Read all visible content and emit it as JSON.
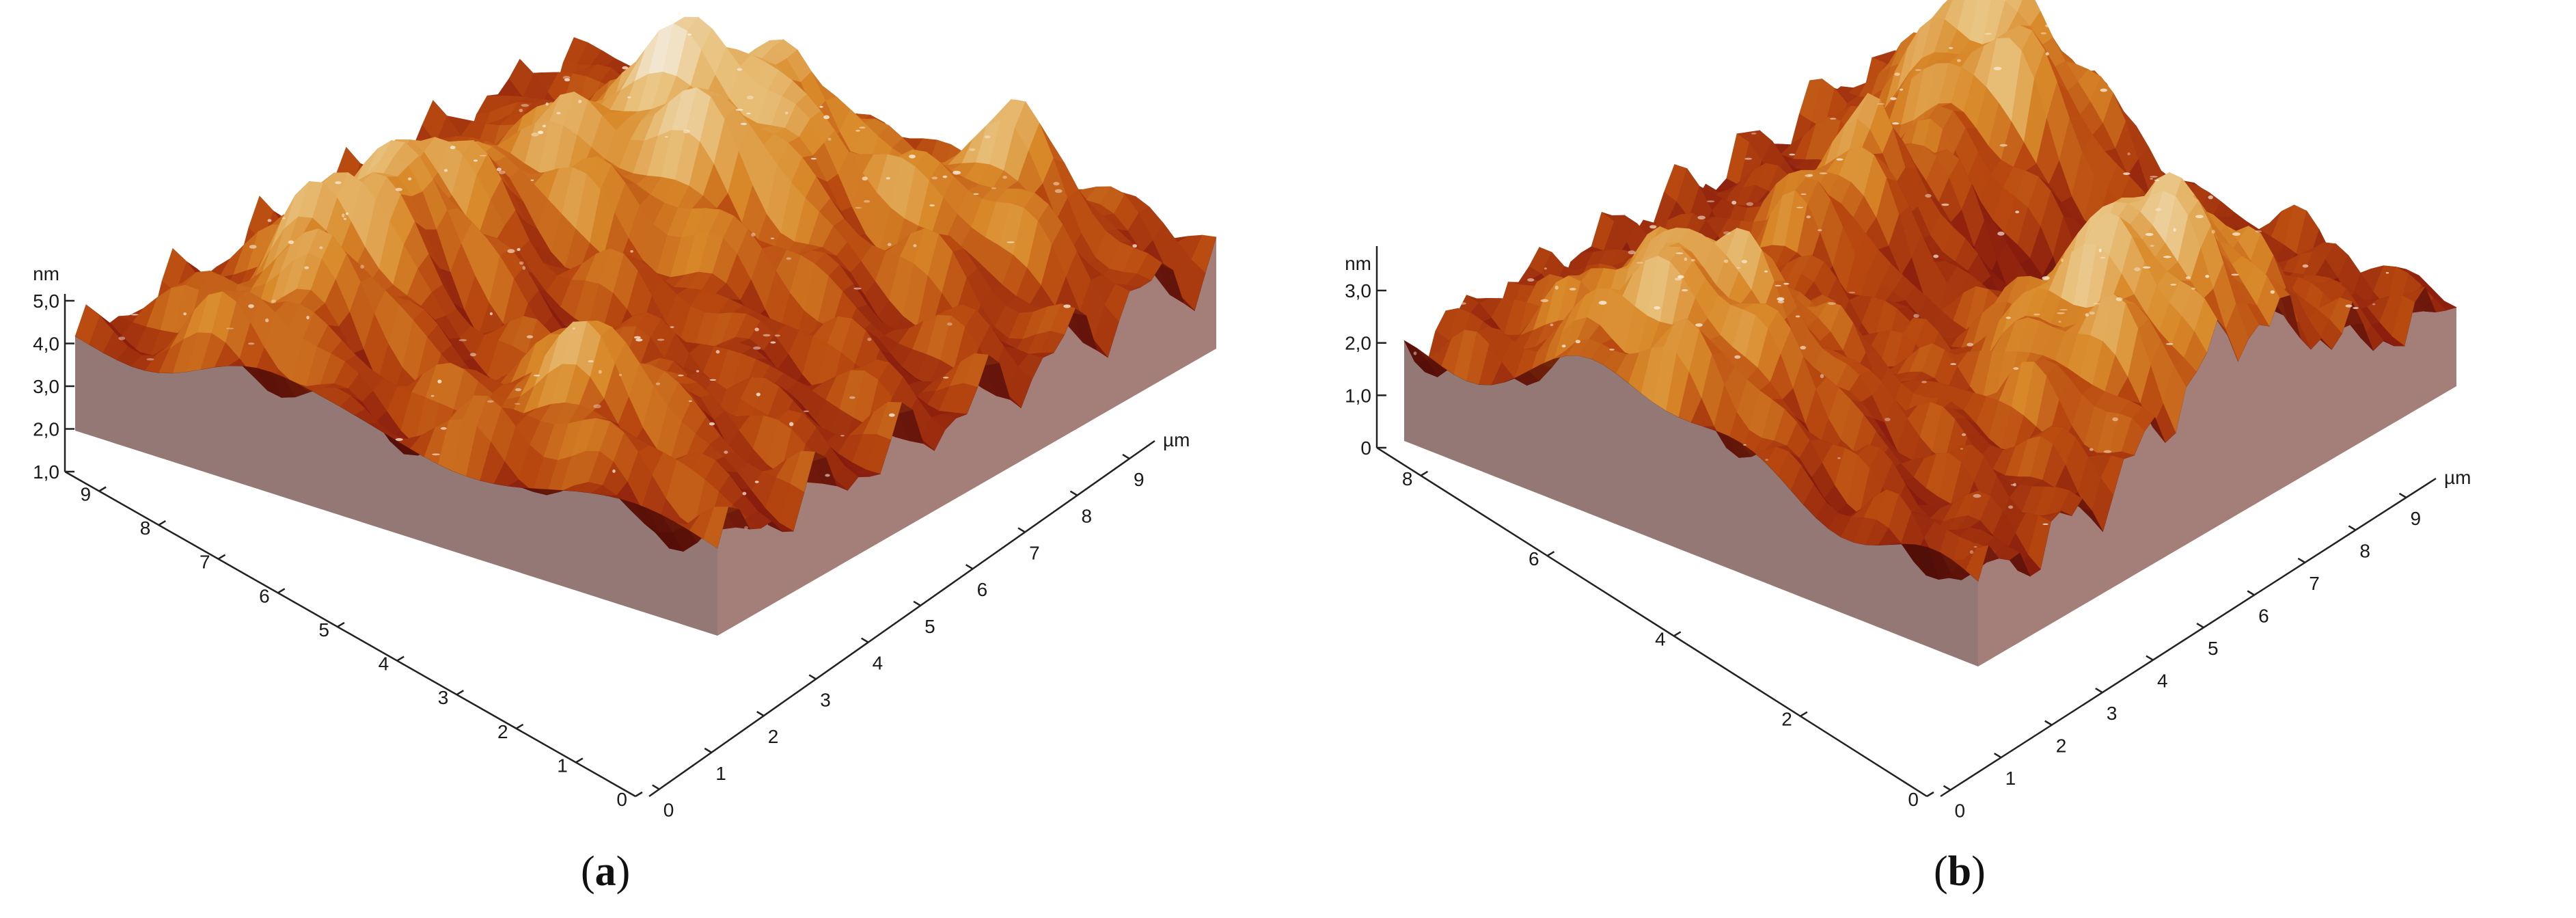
{
  "chart_data": [
    {
      "type": "surface",
      "panel_label": "a",
      "z_unit": "nm",
      "z_ticks": [
        "1,0",
        "2,0",
        "3,0",
        "4,0",
        "5,0"
      ],
      "x_unit": "µm",
      "x_ticks": [
        "0",
        "1",
        "2",
        "3",
        "4",
        "5",
        "6",
        "7",
        "8",
        "9"
      ],
      "y_ticks": [
        "0",
        "1",
        "2",
        "3",
        "4",
        "5",
        "6",
        "7",
        "8",
        "9"
      ],
      "x_range": [
        0,
        10
      ],
      "y_range": [
        0,
        10
      ],
      "z_range": [
        1.0,
        5.0
      ],
      "colormap": [
        "#5a0f0a",
        "#8b1e0e",
        "#b8480f",
        "#d98a2a",
        "#e8c07a",
        "#f4ecde"
      ]
    },
    {
      "type": "surface",
      "panel_label": "b",
      "z_unit": "nm",
      "z_ticks": [
        "0",
        "1,0",
        "2,0",
        "3,0"
      ],
      "x_unit": "µm",
      "x_ticks": [
        "0",
        "1",
        "2",
        "3",
        "4",
        "5",
        "6",
        "7",
        "8",
        "9"
      ],
      "y_ticks": [
        "0",
        "2",
        "4",
        "6",
        "8"
      ],
      "x_range": [
        0,
        10
      ],
      "y_range": [
        0,
        10
      ],
      "z_range": [
        0,
        3.5
      ],
      "colormap": [
        "#5a0f0a",
        "#8b1e0e",
        "#b8480f",
        "#d98a2a",
        "#e8c07a",
        "#f4ecde"
      ]
    }
  ]
}
